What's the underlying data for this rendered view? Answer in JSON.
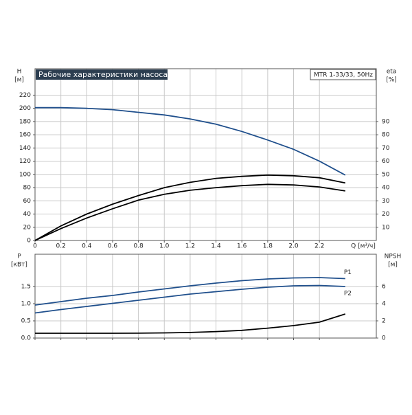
{
  "chart_data": [
    {
      "type": "line",
      "title": "Рабочие характеристики насоса",
      "subtitle": "MTR 1-33/33, 50Hz",
      "ylabel": "H",
      "yunit": "[м]",
      "y2label": "eta",
      "y2unit": "[%]",
      "xlabel": "Q [м³/ч]",
      "x": [
        0,
        0.2,
        0.4,
        0.6,
        0.8,
        1.0,
        1.2,
        1.4,
        1.6,
        1.8,
        2.0,
        2.2,
        2.4
      ],
      "xlim": [
        0,
        2.64
      ],
      "xticks": [
        0,
        0.2,
        0.4,
        0.6,
        0.8,
        {
          "value": 1.0,
          "label": "1.0"
        },
        1.2,
        1.4,
        1.6,
        1.8,
        {
          "value": 2.0,
          "label": "2.0"
        },
        2.2
      ],
      "ylim": [
        0,
        260
      ],
      "yticks": [
        0,
        20,
        40,
        60,
        80,
        100,
        120,
        140,
        160,
        180,
        200,
        220
      ],
      "y2lim": [
        0,
        130
      ],
      "y2ticks": [
        10,
        20,
        30,
        40,
        50,
        60,
        70,
        80,
        90
      ],
      "grid": true,
      "series": [
        {
          "color": "#1f4f8c",
          "values": [
            201,
            201,
            200,
            198,
            194,
            190,
            184,
            176,
            165,
            152,
            138,
            120,
            99
          ]
        },
        {
          "color": "#000000",
          "axis": "y2",
          "values": [
            0,
            11,
            20,
            27.5,
            34,
            40,
            44,
            47,
            48.5,
            49.5,
            49,
            47.5,
            43.5
          ]
        },
        {
          "color": "#000000",
          "axis": "y2",
          "values": [
            0,
            9,
            17,
            24,
            30.5,
            35,
            38,
            40,
            41.5,
            42.5,
            42,
            40.5,
            37.5
          ]
        }
      ]
    },
    {
      "type": "line",
      "ylabel": "P",
      "yunit": "[кВт]",
      "y2label": "NPSH",
      "y2unit": "[м]",
      "x": [
        0,
        0.2,
        0.4,
        0.6,
        0.8,
        1.0,
        1.2,
        1.4,
        1.6,
        1.8,
        2.0,
        2.2,
        2.4
      ],
      "xlim": [
        0,
        2.64
      ],
      "xticks": [
        0,
        0.2,
        0.4,
        0.6,
        0.8,
        1.0,
        1.2,
        1.4,
        1.6,
        1.8,
        2.0,
        2.2
      ],
      "ylim": [
        0,
        2.44
      ],
      "yticks": [
        {
          "value": 0,
          "label": "0.0"
        },
        0.5,
        {
          "value": 1,
          "label": "1.0"
        },
        1.5
      ],
      "y2lim": [
        0,
        9.76
      ],
      "y2ticks": [
        0,
        2,
        4,
        6
      ],
      "grid": true,
      "series": [
        {
          "name": "P1",
          "color": "#1f4f8c",
          "values": [
            0.96,
            1.06,
            1.16,
            1.24,
            1.34,
            1.43,
            1.52,
            1.6,
            1.67,
            1.72,
            1.75,
            1.76,
            1.73
          ]
        },
        {
          "name": "P2",
          "color": "#1f4f8c",
          "values": [
            0.73,
            0.83,
            0.92,
            1.01,
            1.1,
            1.19,
            1.28,
            1.35,
            1.42,
            1.48,
            1.52,
            1.53,
            1.5
          ]
        },
        {
          "color": "#000000",
          "axis": "y2",
          "values": [
            0.56,
            0.56,
            0.56,
            0.56,
            0.57,
            0.6,
            0.65,
            0.75,
            0.9,
            1.15,
            1.45,
            1.85,
            2.8
          ]
        }
      ]
    }
  ]
}
